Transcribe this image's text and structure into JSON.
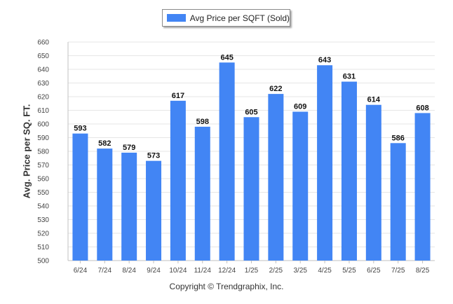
{
  "colors": {
    "bar": "#4285f4",
    "grid": "#e6e6e6",
    "axis": "#c0c0c0"
  },
  "legend": {
    "label": "Avg Price per SQFT (Sold)"
  },
  "footer": {
    "copyright": "Copyright © Trendgraphix, Inc."
  },
  "chart_data": {
    "type": "bar",
    "categories": [
      "6/24",
      "7/24",
      "8/24",
      "9/24",
      "10/24",
      "11/24",
      "12/24",
      "1/25",
      "2/25",
      "3/25",
      "4/25",
      "5/25",
      "6/25",
      "7/25",
      "8/25"
    ],
    "series": [
      {
        "name": "Avg Price per SQFT (Sold)",
        "values": [
          593,
          582,
          579,
          573,
          617,
          598,
          645,
          605,
          622,
          609,
          643,
          631,
          614,
          586,
          608
        ]
      }
    ],
    "ylabel": "Avg. Price per SQ. FT.",
    "ylim": [
      500,
      660
    ],
    "ytick_step": 10,
    "grid": true,
    "legend_position": "top-center",
    "data_labels": true
  }
}
